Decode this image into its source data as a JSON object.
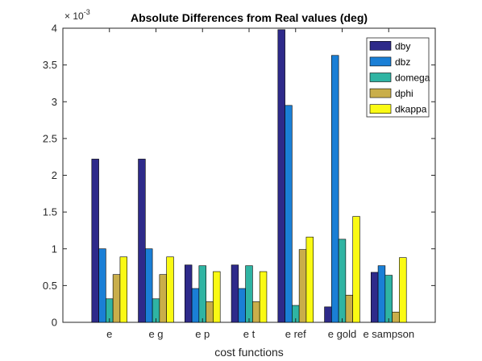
{
  "chart_data": {
    "type": "bar",
    "title": "Absolute Differences from Real values (deg)",
    "xlabel": "cost functions",
    "ylabel": "",
    "exponent_base": "× 10",
    "exponent_power": "-3",
    "ylim": [
      0,
      4
    ],
    "yticks": [
      "0",
      "0.5",
      "1",
      "1.5",
      "2",
      "2.5",
      "3",
      "3.5",
      "4"
    ],
    "categories": [
      "e",
      "e g",
      "e p",
      "e t",
      "e ref",
      "e gold",
      "e sampson"
    ],
    "grid": false,
    "legend_position": "top-right",
    "series": [
      {
        "name": "dby",
        "color": "#2e2a8a",
        "values": [
          2.22,
          2.22,
          0.78,
          0.78,
          3.98,
          0.21,
          0.68
        ]
      },
      {
        "name": "dbz",
        "color": "#1a7fd6",
        "values": [
          1.0,
          1.0,
          0.46,
          0.46,
          2.95,
          3.63,
          0.77
        ]
      },
      {
        "name": "domega",
        "color": "#2fb4a3",
        "values": [
          0.32,
          0.32,
          0.77,
          0.77,
          0.23,
          1.13,
          0.64
        ]
      },
      {
        "name": "dphi",
        "color": "#c9ae4a",
        "values": [
          0.65,
          0.65,
          0.28,
          0.28,
          0.99,
          0.37,
          0.14
        ]
      },
      {
        "name": "dkappa",
        "color": "#fafa14",
        "values": [
          0.89,
          0.89,
          0.69,
          0.69,
          1.16,
          1.44,
          0.88
        ]
      }
    ]
  }
}
